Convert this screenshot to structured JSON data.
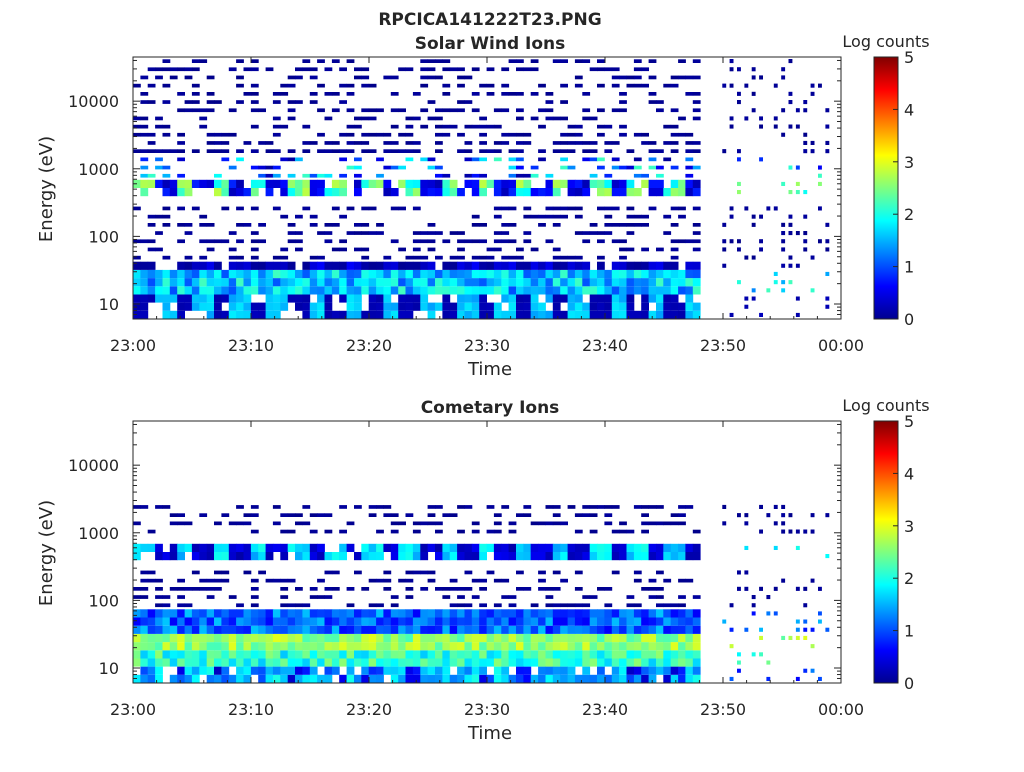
{
  "figure": {
    "title": "RPCICA141222T23.PNG"
  },
  "chart_data": [
    {
      "type": "heatmap",
      "title": "Solar Wind Ions",
      "xlabel": "Time",
      "ylabel": "Energy (eV)",
      "x_ticks": [
        "23:00",
        "23:10",
        "23:20",
        "23:30",
        "23:40",
        "23:50",
        "00:00"
      ],
      "x_range": [
        "23:00",
        "00:00"
      ],
      "y_ticks": [
        "10",
        "100",
        "1000",
        "10000"
      ],
      "y_range_ev": [
        6,
        45000
      ],
      "y_scale": "log",
      "colorbar": {
        "label": "Log counts",
        "ticks": [
          "0",
          "1",
          "2",
          "3",
          "4",
          "5"
        ],
        "range": [
          0,
          5
        ],
        "colormap": "jet"
      },
      "bands": [
        {
          "e_low": 6,
          "e_high": 14,
          "pattern": "alternating",
          "levels_a": [
            0.2,
            0.3
          ],
          "levels_b": [
            1.4,
            1.8
          ]
        },
        {
          "e_low": 14,
          "e_high": 28,
          "pattern": "steady",
          "levels_a": [
            1.0,
            2.2
          ]
        },
        {
          "e_low": 28,
          "e_high": 40,
          "pattern": "alternating",
          "levels_a": [
            0.1,
            0.2
          ],
          "levels_b": [
            0.3,
            0.6
          ]
        },
        {
          "e_low": 40,
          "e_high": 300,
          "pattern": "sparse",
          "levels_a": [
            0.05,
            0.15
          ]
        },
        {
          "e_low": 380,
          "e_high": 700,
          "pattern": "alternating",
          "levels_a": [
            1.8,
            2.8
          ],
          "levels_b": [
            0.2,
            0.8
          ]
        },
        {
          "e_low": 700,
          "e_high": 1400,
          "pattern": "sparse",
          "levels_a": [
            0.1,
            2.2
          ]
        },
        {
          "e_low": 1400,
          "e_high": 2600,
          "pattern": "lines",
          "levels_a": [
            0.05,
            0.15
          ]
        },
        {
          "e_low": 2600,
          "e_high": 40000,
          "pattern": "sparse",
          "levels_a": [
            0.05,
            0.15
          ]
        }
      ]
    },
    {
      "type": "heatmap",
      "title": "Cometary Ions",
      "xlabel": "Time",
      "ylabel": "Energy (eV)",
      "x_ticks": [
        "23:00",
        "23:10",
        "23:20",
        "23:30",
        "23:40",
        "23:50",
        "00:00"
      ],
      "x_range": [
        "23:00",
        "00:00"
      ],
      "y_ticks": [
        "10",
        "100",
        "1000",
        "10000"
      ],
      "y_range_ev": [
        6,
        45000
      ],
      "y_scale": "log",
      "colorbar": {
        "label": "Log counts",
        "ticks": [
          "0",
          "1",
          "2",
          "3",
          "4",
          "5"
        ],
        "range": [
          0,
          5
        ],
        "colormap": "jet"
      },
      "bands": [
        {
          "e_low": 6,
          "e_high": 12,
          "pattern": "alternating",
          "levels_a": [
            0.3,
            1.8
          ],
          "levels_b": [
            1.2,
            2.0
          ]
        },
        {
          "e_low": 12,
          "e_high": 20,
          "pattern": "steady",
          "levels_a": [
            1.6,
            2.6
          ]
        },
        {
          "e_low": 20,
          "e_high": 35,
          "pattern": "steady",
          "levels_a": [
            2.2,
            3.0
          ]
        },
        {
          "e_low": 35,
          "e_high": 70,
          "pattern": "steady",
          "levels_a": [
            0.6,
            1.6
          ]
        },
        {
          "e_low": 70,
          "e_high": 320,
          "pattern": "sparse",
          "levels_a": [
            0.05,
            0.15
          ]
        },
        {
          "e_low": 400,
          "e_high": 700,
          "pattern": "alternating",
          "levels_a": [
            1.4,
            2.0
          ],
          "levels_b": [
            0.2,
            0.6
          ]
        },
        {
          "e_low": 900,
          "e_high": 2600,
          "pattern": "sparse",
          "levels_a": [
            0.05,
            0.15
          ]
        }
      ]
    }
  ]
}
